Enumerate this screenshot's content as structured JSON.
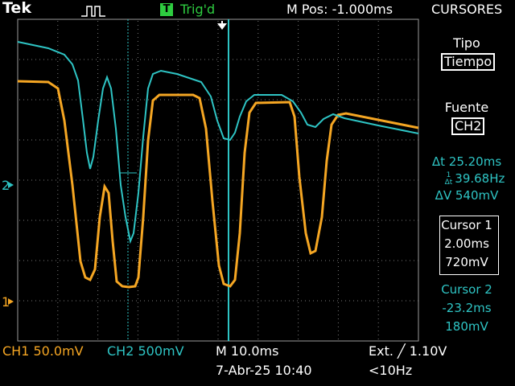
{
  "header": {
    "brand": "Tek",
    "trigger_status": "Trig'd",
    "trigger_icon": "T",
    "m_pos": "M Pos: -1.000ms",
    "menu_title": "CURSORES"
  },
  "menu": {
    "tipo_label": "Tipo",
    "tipo_value": "Tiempo",
    "fuente_label": "Fuente",
    "fuente_value": "CH2",
    "delta_t": "Δt 25.20ms",
    "inv_delta_t": "39.68Hz",
    "delta_v": "ΔV 540mV",
    "cursor1_label": "Cursor 1",
    "cursor1_time": "2.00ms",
    "cursor1_volt": "720mV",
    "cursor2_label": "Cursor 2",
    "cursor2_time": "-23.2ms",
    "cursor2_volt": "180mV"
  },
  "footer": {
    "ch1": "CH1  50.0mV",
    "ch2": "CH2  500mV",
    "timebase": "M 10.0ms",
    "trigger": "Ext. ╱ 1.10V",
    "date": "7-Abr-25 10:40",
    "freq": "<10Hz"
  },
  "markers": {
    "ch2_marker": "2",
    "ch1_marker": "1"
  },
  "colors": {
    "ch1": "#f5a623",
    "ch2": "#2ec4c4",
    "grid": "#808080",
    "trigger": "#2ecc40"
  }
}
